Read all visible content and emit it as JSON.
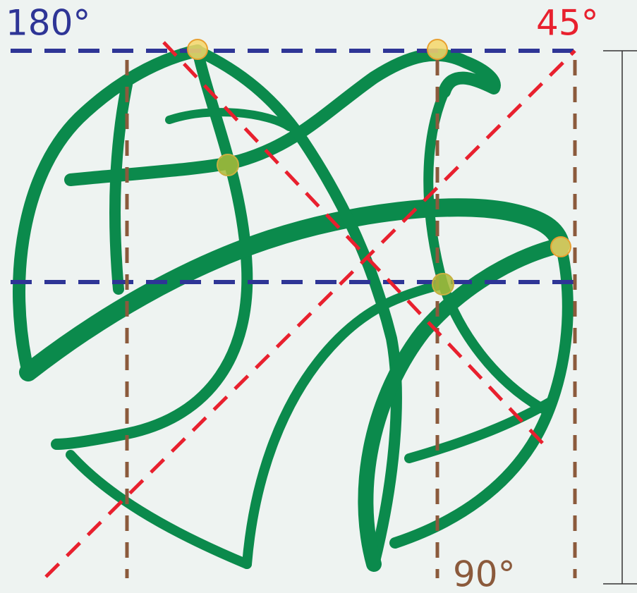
{
  "labels": {
    "angle_180": "180°",
    "angle_45": "45°",
    "angle_90": "90°"
  }
}
